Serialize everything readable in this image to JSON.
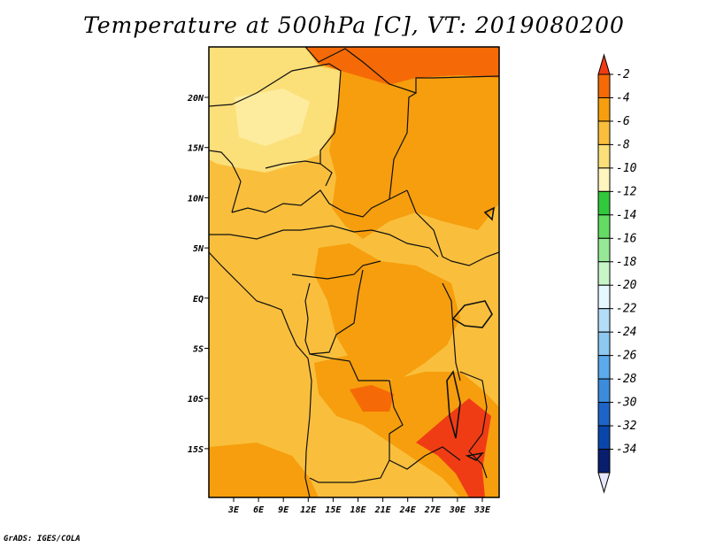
{
  "title": "Temperature at 500hPa [C], VT: 2019080200",
  "credit": "GrADS: IGES/COLA",
  "map": {
    "lon_ticks": [
      "3E",
      "6E",
      "9E",
      "12E",
      "15E",
      "18E",
      "21E",
      "24E",
      "27E",
      "30E",
      "33E"
    ],
    "lat_ticks": [
      "20N",
      "15N",
      "10N",
      "5N",
      "EQ",
      "5S",
      "10S",
      "15S"
    ]
  },
  "colorbar": {
    "labels": [
      "-2",
      "-4",
      "-6",
      "-8",
      "-10",
      "-12",
      "-14",
      "-16",
      "-18",
      "-20",
      "-22",
      "-24",
      "-26",
      "-28",
      "-30",
      "-32",
      "-34"
    ],
    "colors": [
      "#f03c14",
      "#f56a06",
      "#f69e0d",
      "#f9bf3c",
      "#fbdf79",
      "#fff5be",
      "#32c83c",
      "#64dc64",
      "#96e896",
      "#c8f5c8",
      "#e6f8ff",
      "#b2dcf8",
      "#8cc8f0",
      "#5aaaec",
      "#3c8cdc",
      "#1e64c8",
      "#0a46aa",
      "#0a1e6e",
      "#e6e6fa"
    ]
  },
  "field": {
    "base_color": "#f9bf3c",
    "regions": [
      {
        "name": "cold-sahara-north",
        "color": "#fbdf79"
      },
      {
        "name": "warm-north-strip",
        "color": "#f56a06"
      },
      {
        "name": "warm-sudan",
        "color": "#f69e0d"
      },
      {
        "name": "warm-central-africa",
        "color": "#f69e0d"
      },
      {
        "name": "warm-southeast",
        "color": "#f69e0d"
      },
      {
        "name": "hot-mozambique",
        "color": "#f03c14"
      }
    ]
  }
}
